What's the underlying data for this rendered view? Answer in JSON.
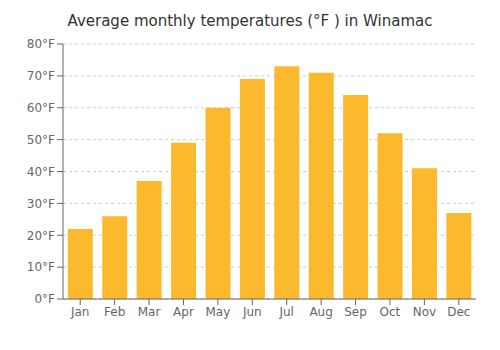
{
  "chart_data": {
    "type": "bar",
    "title": "Average monthly temperatures (°F ) in Winamac",
    "categories": [
      "Jan",
      "Feb",
      "Mar",
      "Apr",
      "May",
      "Jun",
      "Jul",
      "Aug",
      "Sep",
      "Oct",
      "Nov",
      "Dec"
    ],
    "values": [
      22,
      26,
      37,
      49,
      60,
      69,
      73,
      71,
      64,
      52,
      41,
      27
    ],
    "color": "#FDB92E",
    "ylim": [
      0,
      80
    ],
    "yticks": [
      {
        "value": 0,
        "label": "0°F"
      },
      {
        "value": 10,
        "label": "10°F"
      },
      {
        "value": 20,
        "label": "20°F"
      },
      {
        "value": 30,
        "label": "30°F"
      },
      {
        "value": 40,
        "label": "40°F"
      },
      {
        "value": 50,
        "label": "50°F"
      },
      {
        "value": 60,
        "label": "60°F"
      },
      {
        "value": 70,
        "label": "70°F"
      },
      {
        "value": 80,
        "label": "80°F"
      }
    ],
    "grid": true
  }
}
